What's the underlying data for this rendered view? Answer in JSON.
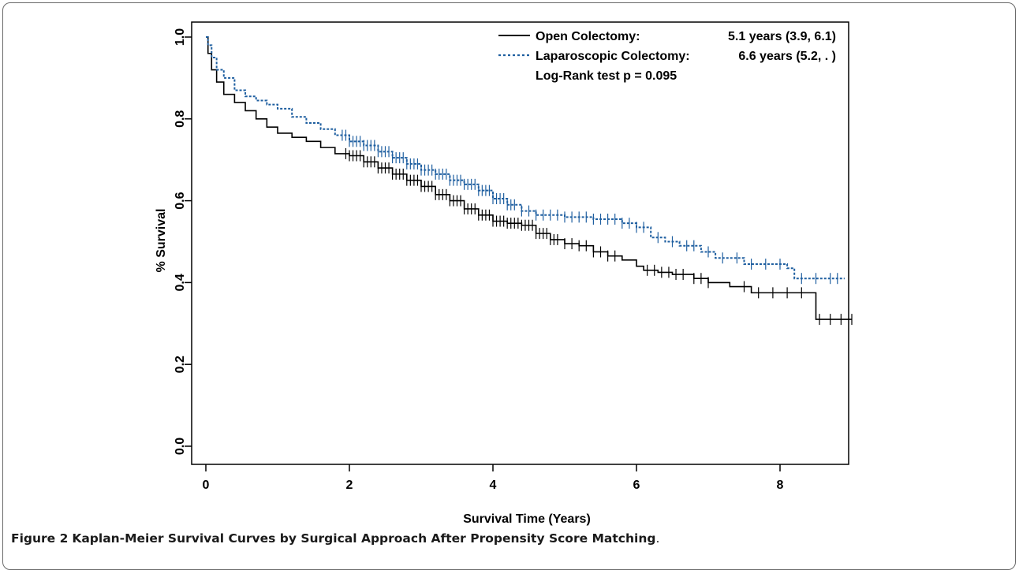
{
  "figure": {
    "label": "Figure 2",
    "title": "Kaplan-Meier Survival Curves by Surgical Approach After Propensity Score Matching",
    "title_suffix": "."
  },
  "chart_data": {
    "type": "line",
    "step": true,
    "xlabel": "Survival Time (Years)",
    "ylabel": "% Survival",
    "xlim": [
      0,
      9.2
    ],
    "ylim": [
      0,
      1.0
    ],
    "xticks": [
      "0",
      "2",
      "4",
      "6",
      "8"
    ],
    "yticks": [
      "0.0",
      "0.2",
      "0.4",
      "0.6",
      "0.8",
      "1.0"
    ],
    "grid": false,
    "legend_position": "top-right",
    "annotation": "Log-Rank test p = 0.095",
    "series": [
      {
        "name": "Open Colectomy:",
        "median_text": "5.1 years (3.9, 6.1)",
        "color": "#000000",
        "linestyle": "solid",
        "x": [
          0,
          0.03,
          0.08,
          0.15,
          0.25,
          0.4,
          0.55,
          0.7,
          0.85,
          1.0,
          1.2,
          1.4,
          1.6,
          1.8,
          2.0,
          2.2,
          2.4,
          2.6,
          2.8,
          3.0,
          3.2,
          3.4,
          3.6,
          3.8,
          4.0,
          4.2,
          4.4,
          4.6,
          4.8,
          5.0,
          5.2,
          5.4,
          5.6,
          5.8,
          6.0,
          6.1,
          6.3,
          6.5,
          6.8,
          7.0,
          7.3,
          7.6,
          8.0,
          8.3,
          8.5,
          8.6,
          9.0
        ],
        "y": [
          1.0,
          0.96,
          0.92,
          0.89,
          0.86,
          0.84,
          0.82,
          0.8,
          0.78,
          0.765,
          0.755,
          0.745,
          0.73,
          0.715,
          0.71,
          0.695,
          0.68,
          0.665,
          0.65,
          0.635,
          0.615,
          0.6,
          0.58,
          0.565,
          0.55,
          0.545,
          0.54,
          0.52,
          0.505,
          0.495,
          0.49,
          0.475,
          0.465,
          0.455,
          0.44,
          0.43,
          0.425,
          0.42,
          0.41,
          0.4,
          0.39,
          0.375,
          0.375,
          0.375,
          0.31,
          0.31,
          0.31
        ],
        "censor_x": [
          1.95,
          2.0,
          2.05,
          2.1,
          2.15,
          2.2,
          2.25,
          2.3,
          2.35,
          2.4,
          2.45,
          2.5,
          2.55,
          2.6,
          2.65,
          2.7,
          2.75,
          2.8,
          2.85,
          2.9,
          2.95,
          3.0,
          3.05,
          3.1,
          3.15,
          3.2,
          3.25,
          3.3,
          3.35,
          3.4,
          3.45,
          3.5,
          3.55,
          3.6,
          3.65,
          3.7,
          3.75,
          3.8,
          3.85,
          3.9,
          3.95,
          4.0,
          4.05,
          4.1,
          4.15,
          4.2,
          4.25,
          4.3,
          4.35,
          4.4,
          4.45,
          4.5,
          4.55,
          4.6,
          4.65,
          4.7,
          4.75,
          4.8,
          4.85,
          4.9,
          5.0,
          5.1,
          5.2,
          5.3,
          5.4,
          5.5,
          5.6,
          5.7,
          6.15,
          6.25,
          6.35,
          6.45,
          6.55,
          6.65,
          6.8,
          6.9,
          7.0,
          7.5,
          7.7,
          7.9,
          8.1,
          8.3,
          8.55,
          8.7,
          8.85,
          9.0
        ]
      },
      {
        "name": "Laparoscopic Colectomy:",
        "median_text": "6.6 years (5.2, . )",
        "color": "#1f5fa0",
        "linestyle": "dashed",
        "x": [
          0,
          0.03,
          0.08,
          0.15,
          0.25,
          0.4,
          0.55,
          0.7,
          0.85,
          1.0,
          1.2,
          1.4,
          1.6,
          1.8,
          2.0,
          2.2,
          2.4,
          2.6,
          2.8,
          3.0,
          3.2,
          3.4,
          3.6,
          3.8,
          4.0,
          4.2,
          4.4,
          4.6,
          5.0,
          5.4,
          5.8,
          6.0,
          6.2,
          6.4,
          6.6,
          6.9,
          7.1,
          7.5,
          8.0,
          8.1,
          8.2,
          8.9
        ],
        "y": [
          1.0,
          0.98,
          0.95,
          0.92,
          0.9,
          0.87,
          0.855,
          0.845,
          0.835,
          0.825,
          0.805,
          0.79,
          0.775,
          0.76,
          0.745,
          0.735,
          0.72,
          0.705,
          0.69,
          0.675,
          0.665,
          0.65,
          0.64,
          0.625,
          0.605,
          0.59,
          0.575,
          0.565,
          0.56,
          0.555,
          0.545,
          0.535,
          0.51,
          0.5,
          0.49,
          0.475,
          0.46,
          0.445,
          0.445,
          0.435,
          0.41,
          0.41
        ],
        "censor_x": [
          1.9,
          1.95,
          2.0,
          2.05,
          2.1,
          2.15,
          2.2,
          2.25,
          2.3,
          2.35,
          2.4,
          2.45,
          2.5,
          2.55,
          2.6,
          2.65,
          2.7,
          2.75,
          2.8,
          2.85,
          2.9,
          2.95,
          3.0,
          3.05,
          3.1,
          3.15,
          3.2,
          3.25,
          3.3,
          3.35,
          3.4,
          3.45,
          3.5,
          3.55,
          3.6,
          3.65,
          3.7,
          3.75,
          3.8,
          3.85,
          3.9,
          3.95,
          4.0,
          4.05,
          4.1,
          4.15,
          4.2,
          4.25,
          4.3,
          4.4,
          4.5,
          4.6,
          4.7,
          4.8,
          4.9,
          5.0,
          5.1,
          5.2,
          5.3,
          5.4,
          5.5,
          5.6,
          5.7,
          5.8,
          5.9,
          6.0,
          6.1,
          6.3,
          6.5,
          6.7,
          6.8,
          7.0,
          7.2,
          7.4,
          7.6,
          7.8,
          8.0,
          8.3,
          8.5,
          8.7,
          8.8
        ]
      }
    ]
  }
}
